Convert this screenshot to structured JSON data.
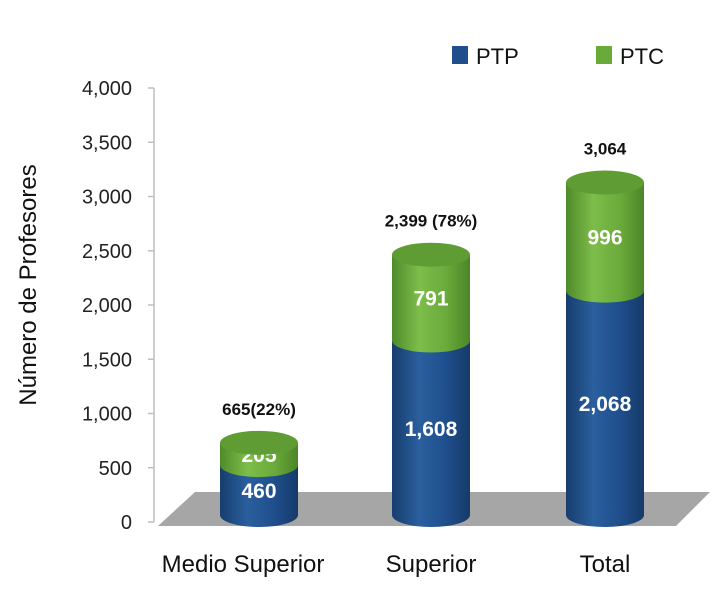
{
  "chart_data": {
    "type": "bar",
    "stacked": true,
    "style": "3d-cylinder",
    "ylabel": "Número de Profesores",
    "ylim": [
      0,
      4000
    ],
    "yticks": [
      "0",
      "500",
      "1,000",
      "1,500",
      "2,000",
      "2,500",
      "3,000",
      "3,500",
      "4,000"
    ],
    "categories": [
      "Medio Superior",
      "Superior",
      "Total"
    ],
    "series": [
      {
        "name": "PTP",
        "values": [
          460,
          1608,
          2068
        ],
        "labels": [
          "460",
          "1,608",
          "2,068"
        ],
        "color": "#1f4e8c"
      },
      {
        "name": "PTC",
        "values": [
          205,
          791,
          996
        ],
        "labels": [
          "205",
          "791",
          "996"
        ],
        "color": "#6aaa3a"
      }
    ],
    "totals": [
      "665(22%)",
      "2,399 (78%)",
      "3,064"
    ],
    "legend": "top-right",
    "grid": false
  }
}
